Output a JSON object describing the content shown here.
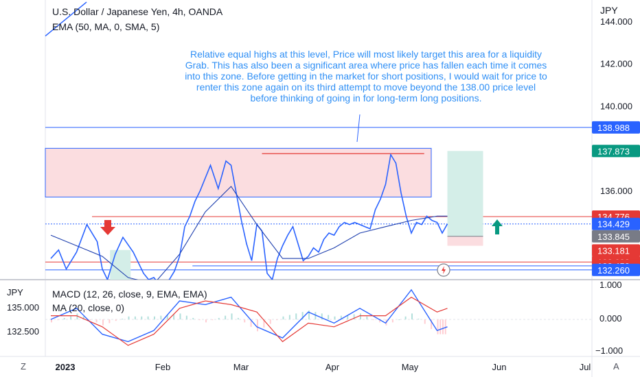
{
  "header": {
    "symbol": "U.S. Dollar / Japanese Yen, 4h, OANDA",
    "indicator": "EMA (50, MA, 0, SMA, 5)",
    "currency": "JPY"
  },
  "annotation": "Relative equal highs at this level, Price will most likely target this area for a liquidity Grab. This has also been a significant area where price has fallen each time it comes into this zone. Before getting in the market for short positions, I would wait for price to renter this zone again on its third attempt to move beyond the 138.00 price level before thinking of going in for long-term long positions.",
  "macd_panel": {
    "label": "MACD (12, 26, close, 9, EMA, EMA)",
    "ma_label": "MA (20, close, 0)",
    "currency": "JPY",
    "left_ticks": [
      "135.000",
      "132.500"
    ],
    "right_ticks": [
      "1.000",
      "0.000",
      "−1.000"
    ]
  },
  "colors": {
    "price": "#2962ff",
    "ema": "#1e3fae",
    "resistance": "#e53935",
    "support_line": "#2962ff",
    "zone_fill": "#fbdde0",
    "target_fill": "#d4eee8",
    "stop_fill": "#fbdde0",
    "macd_line": "#2962ff",
    "signal_line": "#e53935",
    "hist_pos": "#b2dfdb",
    "hist_neg": "#ffcdd2",
    "arrow_down": "#e53935",
    "arrow_up": "#089981"
  },
  "icons": [
    "arrow-down-icon",
    "arrow-up-icon",
    "lightning-icon",
    "timezone-icon",
    "auto-scale-icon"
  ],
  "bottom_bar": {
    "left": "Z",
    "right": "A"
  },
  "chart_data": {
    "type": "line",
    "title": "U.S. Dollar / Japanese Yen, 4h, OANDA",
    "xlabel": "",
    "ylabel": "JPY",
    "ylim": [
      131.8,
      145
    ],
    "x_ticks": [
      "2023",
      "Feb",
      "Mar",
      "Apr",
      "May",
      "Jun",
      "Jul"
    ],
    "y_ticks": [
      144,
      142,
      140,
      138,
      136
    ],
    "grid": false,
    "series": [
      {
        "name": "",
        "x": [
          0,
          3,
          6,
          10,
          14,
          18,
          20,
          22,
          25,
          28,
          32,
          36,
          38,
          40,
          42,
          44,
          46,
          48,
          50,
          52,
          54,
          56,
          58,
          60,
          62,
          65,
          68,
          70,
          72,
          74,
          76,
          78,
          80,
          82,
          84,
          86,
          88,
          90,
          92,
          94,
          96,
          98,
          100,
          102,
          104,
          106,
          108,
          110,
          112,
          114,
          116,
          118,
          120,
          122,
          124,
          126,
          128,
          130,
          132,
          134,
          136,
          138,
          140,
          142,
          144,
          146,
          148,
          150,
          152,
          154
        ],
        "values": [
          132.8,
          133.2,
          132.3,
          133.1,
          134.4,
          133.6,
          132.3,
          131.8,
          133.0,
          133.8,
          133.1,
          132.1,
          131.8,
          131.9,
          131.6,
          131.6,
          131.8,
          132.2,
          132.9,
          134.3,
          134.8,
          135.5,
          136.0,
          136.6,
          137.2,
          136.1,
          137.4,
          137.2,
          135.9,
          134.6,
          133.5,
          132.7,
          134.4,
          134.1,
          132.1,
          131.8,
          132.8,
          133.4,
          133.9,
          134.3,
          133.5,
          132.7,
          132.9,
          133.3,
          133.1,
          133.7,
          134.0,
          133.9,
          134.3,
          134.5,
          134.4,
          134.5,
          134.4,
          134.3,
          134.2,
          135.1,
          135.6,
          136.3,
          137.7,
          137.3,
          135.9,
          134.8,
          134.0,
          134.5,
          134.4,
          134.8,
          134.6,
          134.5,
          134.0,
          134.43
        ],
        "color": "#2962ff"
      },
      {
        "name": "",
        "x": [
          0,
          10,
          20,
          30,
          40,
          50,
          60,
          70,
          80,
          90,
          100,
          110,
          120,
          130,
          140,
          150,
          154
        ],
        "values": [
          133.9,
          133.4,
          132.9,
          131.9,
          131.6,
          133.0,
          135.0,
          136.2,
          134.4,
          132.8,
          132.8,
          133.3,
          134.0,
          134.3,
          134.6,
          134.8,
          134.8
        ],
        "color": "#1e3fae"
      }
    ],
    "levels": [
      {
        "label": "138.988",
        "value": 138.988,
        "color": "#2962ff"
      },
      {
        "label": "137.873",
        "value": 137.873,
        "color": "#089981"
      },
      {
        "label": "134.776",
        "value": 134.776,
        "color": "#e53935"
      },
      {
        "label": "134.429",
        "value": 134.429,
        "color": "#2962ff"
      },
      {
        "label": "133.845",
        "value": 133.845,
        "color": "#787b86"
      },
      {
        "label": "133.181",
        "value": 133.181,
        "color": "#e53935"
      },
      {
        "label": "132.632",
        "value": 132.632,
        "color": "#e53935"
      },
      {
        "label": "132.453",
        "value": 132.453,
        "color": "#e53935"
      },
      {
        "label": "132.260",
        "value": 132.26,
        "color": "#2962ff"
      }
    ],
    "macd": {
      "ylim": [
        -1,
        1
      ],
      "x": [
        0,
        10,
        20,
        30,
        40,
        50,
        60,
        70,
        80,
        90,
        100,
        110,
        120,
        130,
        140,
        150,
        154
      ],
      "macd": [
        0.0,
        0.3,
        -0.4,
        -0.6,
        -0.3,
        0.5,
        0.4,
        0.6,
        -0.2,
        -0.5,
        0.2,
        -0.1,
        0.3,
        -0.1,
        0.8,
        -0.3,
        -0.2
      ],
      "signal": [
        0.1,
        0.1,
        -0.2,
        -0.7,
        -0.4,
        0.3,
        0.5,
        0.4,
        0.2,
        -0.6,
        -0.1,
        -0.2,
        0.1,
        0.1,
        0.6,
        0.2,
        0.3
      ]
    }
  }
}
